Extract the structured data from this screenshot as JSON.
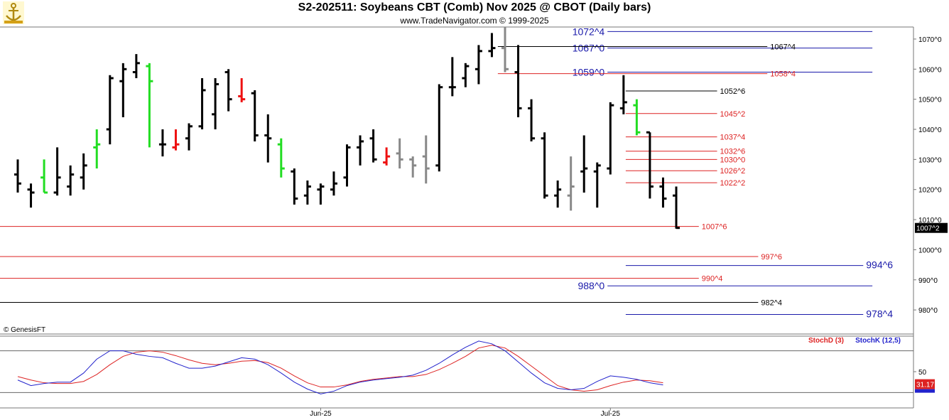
{
  "header": {
    "title": "S2-202511:  Soybeans CBT (Comb) Nov 2025 @ CBOT  (Daily bars)",
    "subtitle": "www.TradeNavigator.com © 1999-2025",
    "logo_icon": "trade-navigator-logo"
  },
  "copyright": "© GenesisFT",
  "colors": {
    "up_bar": "#22dd22",
    "down_bar": "#ee1111",
    "normal_bar": "#000000",
    "neutral_bar": "#888888",
    "blue_level": "#1a1aaa",
    "red_level": "#dd2222",
    "black_level": "#000000",
    "stoch_d": "#dd2222",
    "stoch_k": "#2222cc"
  },
  "chart_data": [
    {
      "type": "ohlc",
      "title": "S2-202511:  Soybeans CBT (Comb) Nov 2025 @ CBOT  (Daily bars)",
      "ylim": [
        972,
        1074
      ],
      "y_ticks": [
        "980^0",
        "990^0",
        "1000^0",
        "1010^0",
        "1020^0",
        "1030^0",
        "1040^0",
        "1050^0",
        "1060^0",
        "1070^0"
      ],
      "y_tick_values": [
        980,
        990,
        1000,
        1010,
        1020,
        1030,
        1040,
        1050,
        1060,
        1070
      ],
      "x_labels": [
        {
          "label": "Jun-25",
          "bar": 23
        },
        {
          "label": "Jul-25",
          "bar": 45
        }
      ],
      "last_price": {
        "label": "1007^2",
        "value": 1007.25
      },
      "bars": [
        {
          "o": 1025,
          "h": 1030,
          "l": 1019,
          "c": 1022,
          "color": "black"
        },
        {
          "o": 1020,
          "h": 1022,
          "l": 1014,
          "c": 1019,
          "color": "black"
        },
        {
          "o": 1024,
          "h": 1030,
          "l": 1019,
          "c": 1019,
          "color": "green"
        },
        {
          "o": 1019,
          "h": 1034,
          "l": 1018,
          "c": 1024,
          "color": "black"
        },
        {
          "o": 1021,
          "h": 1028,
          "l": 1018,
          "c": 1025,
          "color": "black"
        },
        {
          "o": 1024,
          "h": 1032,
          "l": 1020,
          "c": 1028,
          "color": "black"
        },
        {
          "o": 1034,
          "h": 1040,
          "l": 1027,
          "c": 1035,
          "color": "green"
        },
        {
          "o": 1040,
          "h": 1058,
          "l": 1035,
          "c": 1057,
          "color": "black"
        },
        {
          "o": 1056,
          "h": 1062,
          "l": 1044,
          "c": 1060,
          "color": "black"
        },
        {
          "o": 1059,
          "h": 1065,
          "l": 1057,
          "c": 1062,
          "color": "black"
        },
        {
          "o": 1061,
          "h": 1062,
          "l": 1034,
          "c": 1056,
          "color": "green"
        },
        {
          "o": 1035,
          "h": 1040,
          "l": 1031,
          "c": 1035,
          "color": "black"
        },
        {
          "o": 1034,
          "h": 1040,
          "l": 1033,
          "c": 1035,
          "color": "red"
        },
        {
          "o": 1037,
          "h": 1042,
          "l": 1033,
          "c": 1041,
          "color": "black"
        },
        {
          "o": 1041,
          "h": 1057,
          "l": 1040,
          "c": 1053,
          "color": "black"
        },
        {
          "o": 1045,
          "h": 1057,
          "l": 1040,
          "c": 1055,
          "color": "black"
        },
        {
          "o": 1059,
          "h": 1060,
          "l": 1046,
          "c": 1050,
          "color": "black"
        },
        {
          "o": 1051,
          "h": 1057,
          "l": 1049,
          "c": 1050,
          "color": "red"
        },
        {
          "o": 1052,
          "h": 1053,
          "l": 1036,
          "c": 1038,
          "color": "black"
        },
        {
          "o": 1038,
          "h": 1045,
          "l": 1029,
          "c": 1037,
          "color": "black"
        },
        {
          "o": 1035,
          "h": 1037,
          "l": 1024,
          "c": 1027,
          "color": "green"
        },
        {
          "o": 1026,
          "h": 1027,
          "l": 1015,
          "c": 1017,
          "color": "black"
        },
        {
          "o": 1018,
          "h": 1023,
          "l": 1015,
          "c": 1021,
          "color": "black"
        },
        {
          "o": 1020,
          "h": 1022,
          "l": 1015,
          "c": 1021,
          "color": "black"
        },
        {
          "o": 1020,
          "h": 1026,
          "l": 1018,
          "c": 1022,
          "color": "black"
        },
        {
          "o": 1024,
          "h": 1035,
          "l": 1021,
          "c": 1034,
          "color": "black"
        },
        {
          "o": 1034,
          "h": 1038,
          "l": 1028,
          "c": 1036,
          "color": "black"
        },
        {
          "o": 1037,
          "h": 1040,
          "l": 1029,
          "c": 1030,
          "color": "black"
        },
        {
          "o": 1029,
          "h": 1034,
          "l": 1028,
          "c": 1031,
          "color": "red"
        },
        {
          "o": 1032,
          "h": 1037,
          "l": 1027,
          "c": 1030,
          "color": "gray"
        },
        {
          "o": 1030,
          "h": 1031,
          "l": 1024,
          "c": 1028,
          "color": "gray"
        },
        {
          "o": 1031,
          "h": 1038,
          "l": 1022,
          "c": 1027,
          "color": "gray"
        },
        {
          "o": 1028,
          "h": 1055,
          "l": 1026,
          "c": 1054,
          "color": "black"
        },
        {
          "o": 1054,
          "h": 1064,
          "l": 1051,
          "c": 1054,
          "color": "black"
        },
        {
          "o": 1057,
          "h": 1062,
          "l": 1054,
          "c": 1061,
          "color": "black"
        },
        {
          "o": 1060,
          "h": 1068,
          "l": 1055,
          "c": 1066,
          "color": "black"
        },
        {
          "o": 1066,
          "h": 1072,
          "l": 1064,
          "c": 1067,
          "color": "black"
        },
        {
          "o": 1067,
          "h": 1074,
          "l": 1059,
          "c": 1060,
          "color": "gray"
        },
        {
          "o": 1059,
          "h": 1068,
          "l": 1044,
          "c": 1047,
          "color": "black"
        },
        {
          "o": 1047,
          "h": 1050,
          "l": 1036,
          "c": 1037,
          "color": "black"
        },
        {
          "o": 1037,
          "h": 1039,
          "l": 1017,
          "c": 1018,
          "color": "black"
        },
        {
          "o": 1018,
          "h": 1023,
          "l": 1014,
          "c": 1020,
          "color": "black"
        },
        {
          "o": 1018,
          "h": 1031,
          "l": 1013,
          "c": 1021,
          "color": "gray"
        },
        {
          "o": 1026,
          "h": 1038,
          "l": 1019,
          "c": 1027,
          "color": "black"
        },
        {
          "o": 1026,
          "h": 1029,
          "l": 1014,
          "c": 1028,
          "color": "black"
        },
        {
          "o": 1027,
          "h": 1049,
          "l": 1025,
          "c": 1048,
          "color": "black"
        },
        {
          "o": 1047,
          "h": 1058,
          "l": 1045,
          "c": 1049,
          "color": "black"
        },
        {
          "o": 1048,
          "h": 1050,
          "l": 1038,
          "c": 1039,
          "color": "green"
        },
        {
          "o": 1039,
          "h": 1039,
          "l": 1017,
          "c": 1021,
          "color": "black"
        },
        {
          "o": 1021,
          "h": 1024,
          "l": 1014,
          "c": 1017,
          "color": "black"
        },
        {
          "o": 1018,
          "h": 1021,
          "l": 1007,
          "c": 1007.25,
          "color": "black"
        }
      ],
      "levels": [
        {
          "value": 1072.5,
          "label": "1072^4",
          "color": "blue",
          "x0": 0.665,
          "x1": 0.955,
          "label_at": "start",
          "label_big": true
        },
        {
          "value": 1067,
          "label": "1067^0",
          "color": "blue",
          "x0": 0.665,
          "x1": 0.955,
          "label_at": "start",
          "label_big": true
        },
        {
          "value": 1067.5,
          "label": "1067^4",
          "color": "black",
          "x0": 0.545,
          "x1": 0.84,
          "label_at": "end"
        },
        {
          "value": 1059,
          "label": "1059^0",
          "color": "blue",
          "x0": 0.665,
          "x1": 0.955,
          "label_at": "start",
          "label_big": true
        },
        {
          "value": 1058.5,
          "label": "1058^4",
          "color": "red",
          "x0": 0.545,
          "x1": 0.84,
          "label_at": "end"
        },
        {
          "value": 1052.75,
          "label": "1052^6",
          "color": "black",
          "x0": 0.685,
          "x1": 0.785,
          "label_at": "end"
        },
        {
          "value": 1045.25,
          "label": "1045^2",
          "color": "red",
          "x0": 0.685,
          "x1": 0.785,
          "label_at": "end"
        },
        {
          "value": 1037.5,
          "label": "1037^4",
          "color": "red",
          "x0": 0.685,
          "x1": 0.785,
          "label_at": "end"
        },
        {
          "value": 1032.75,
          "label": "1032^6",
          "color": "red",
          "x0": 0.685,
          "x1": 0.785,
          "label_at": "end"
        },
        {
          "value": 1030,
          "label": "1030^0",
          "color": "red",
          "x0": 0.685,
          "x1": 0.785,
          "label_at": "end"
        },
        {
          "value": 1026.25,
          "label": "1026^2",
          "color": "red",
          "x0": 0.685,
          "x1": 0.785,
          "label_at": "end"
        },
        {
          "value": 1022.25,
          "label": "1022^2",
          "color": "red",
          "x0": 0.685,
          "x1": 0.785,
          "label_at": "end"
        },
        {
          "value": 1007.75,
          "label": "1007^6",
          "color": "red",
          "x0": 0.0,
          "x1": 0.765,
          "label_at": "end"
        },
        {
          "value": 997.75,
          "label": "997^6",
          "color": "red",
          "x0": 0.0,
          "x1": 0.83,
          "label_at": "end"
        },
        {
          "value": 994.75,
          "label": "994^6",
          "color": "blue",
          "x0": 0.685,
          "x1": 0.945,
          "label_at": "end",
          "label_big": true
        },
        {
          "value": 990.5,
          "label": "990^4",
          "color": "red",
          "x0": 0.0,
          "x1": 0.765,
          "label_at": "end"
        },
        {
          "value": 988,
          "label": "988^0",
          "color": "blue",
          "x0": 0.665,
          "x1": 0.955,
          "label_at": "start",
          "label_big": true
        },
        {
          "value": 982.5,
          "label": "982^4",
          "color": "black",
          "x0": 0.0,
          "x1": 0.83,
          "label_at": "end"
        },
        {
          "value": 978.5,
          "label": "978^4",
          "color": "blue",
          "x0": 0.685,
          "x1": 0.945,
          "label_at": "end",
          "label_big": true
        }
      ]
    },
    {
      "type": "line",
      "title": "",
      "legend": [
        {
          "name": "StochD (3)",
          "color": "#dd2222"
        },
        {
          "name": "StochK (12,5)",
          "color": "#2222cc"
        }
      ],
      "ylim": [
        0,
        100
      ],
      "y_ticks": [
        "50"
      ],
      "y_tick_values": [
        50
      ],
      "reference_lines": [
        80,
        20
      ],
      "last_value_label": "31.17",
      "series": [
        {
          "name": "StochD (3)",
          "values": [
            43,
            38,
            34,
            33,
            33,
            36,
            46,
            60,
            72,
            78,
            80,
            78,
            73,
            67,
            62,
            60,
            62,
            65,
            66,
            63,
            55,
            44,
            34,
            28,
            28,
            31,
            36,
            39,
            41,
            43,
            43,
            46,
            53,
            62,
            72,
            84,
            88,
            84,
            72,
            58,
            44,
            30,
            24,
            22,
            24,
            30,
            35,
            38,
            37,
            34
          ]
        },
        {
          "name": "StochK (12,5)",
          "values": [
            38,
            30,
            33,
            35,
            35,
            48,
            68,
            80,
            80,
            75,
            72,
            70,
            62,
            55,
            55,
            58,
            64,
            70,
            68,
            60,
            48,
            35,
            25,
            18,
            22,
            30,
            35,
            38,
            40,
            42,
            45,
            52,
            62,
            74,
            85,
            94,
            90,
            80,
            64,
            48,
            34,
            26,
            24,
            26,
            36,
            44,
            42,
            39,
            34,
            31
          ]
        }
      ]
    }
  ]
}
